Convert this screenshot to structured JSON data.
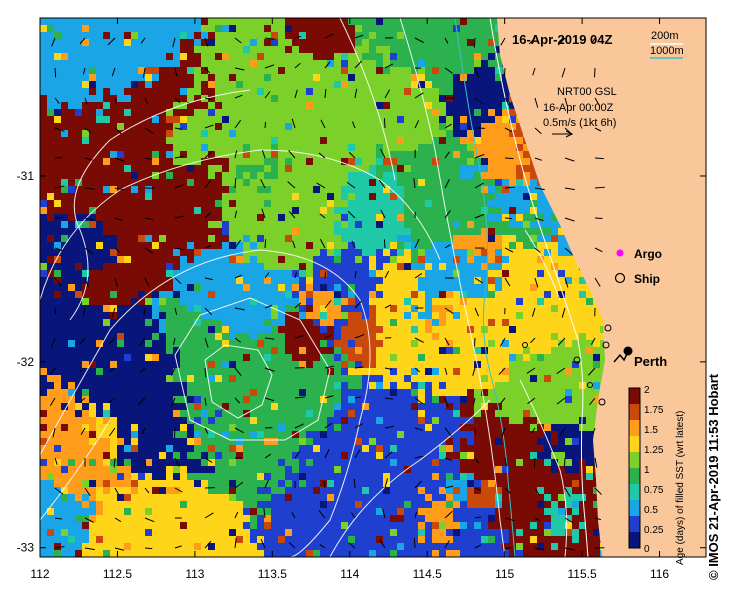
{
  "map": {
    "timestamp": "16-Apr-2019 04Z",
    "colors": {
      "land": "#f9c79a",
      "frame": "#000000",
      "contour": "#ffffff",
      "isobath_1000": "#3fbfbf",
      "argo_marker": "#ff00ff"
    },
    "legend_scale": {
      "depth_200": "200m",
      "depth_1000": "1000m"
    },
    "current_note": {
      "line1": "NRT00 GSL",
      "line2": "16-Apr 00:00Z",
      "line3": "0.5m/s (1kt 6h)"
    },
    "markers": [
      {
        "label": "Argo",
        "icon": "argo-float-icon"
      },
      {
        "label": "Ship",
        "icon": "ship-icon"
      }
    ],
    "city": {
      "label": "Perth",
      "lon": 115.86,
      "lat": -31.95
    },
    "x_ticks": [
      "112",
      "112.5",
      "113",
      "113.5",
      "114",
      "114.5",
      "115",
      "115.5",
      "116"
    ],
    "y_ticks": [
      "-31",
      "-32",
      "-33"
    ],
    "x_range": [
      112,
      116.3
    ],
    "y_range": [
      -33.05,
      -30.15
    ],
    "colorbar": {
      "title": "Age (days) of filled SST (wrt latest)",
      "ticks": [
        "2",
        "1.75",
        "1.5",
        "1.25",
        "1",
        "0.75",
        "0.5",
        "0.25",
        "0"
      ],
      "range": [
        0,
        2
      ],
      "colors": [
        "#08157a",
        "#1f3fcf",
        "#1aa5e6",
        "#1fc9a8",
        "#2bb24e",
        "#7bd12a",
        "#ffd51a",
        "#ff9d1a",
        "#c9480c",
        "#7a0a04"
      ]
    },
    "copyright": "© IMOS 21-Apr-2019 11:53 Hobart"
  }
}
